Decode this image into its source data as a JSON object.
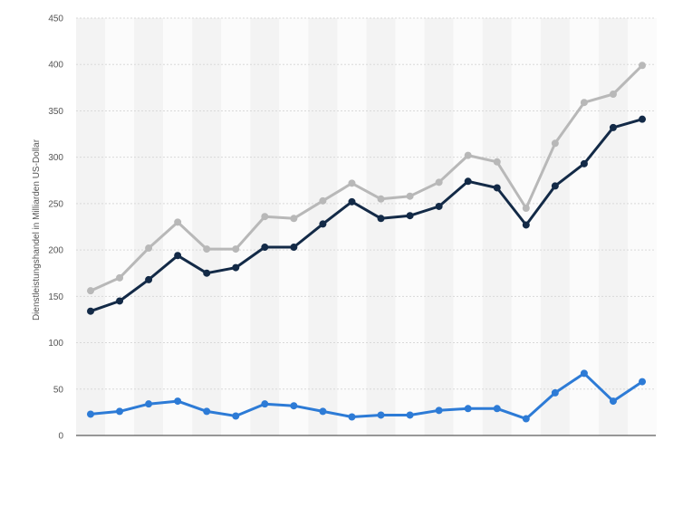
{
  "chart_data": {
    "type": "line",
    "title": "",
    "xlabel": "",
    "ylabel": "Dienstleistungshandel in Milliarden US-Dollar",
    "ylim": [
      0,
      450
    ],
    "yticks": [
      "0",
      "50",
      "100",
      "150",
      "200",
      "250",
      "300",
      "350",
      "400",
      "450"
    ],
    "grid": true,
    "legend": "none",
    "x": [
      1,
      2,
      3,
      4,
      5,
      6,
      7,
      8,
      9,
      10,
      11,
      12,
      13,
      14,
      15,
      16,
      17,
      18,
      19,
      20
    ],
    "series": [
      {
        "color": "#b8b8b8",
        "values": [
          156,
          170,
          202,
          230,
          201,
          201,
          236,
          234,
          253,
          272,
          255,
          258,
          273,
          302,
          295,
          245,
          315,
          359,
          368,
          399
        ]
      },
      {
        "color": "#132a47",
        "values": [
          134,
          145,
          168,
          194,
          175,
          181,
          203,
          203,
          228,
          252,
          234,
          237,
          247,
          274,
          267,
          227,
          269,
          293,
          332,
          341
        ]
      },
      {
        "color": "#2d7bd6",
        "values": [
          23,
          26,
          34,
          37,
          26,
          21,
          34,
          32,
          26,
          20,
          22,
          22,
          27,
          29,
          29,
          18,
          46,
          67,
          37,
          58
        ]
      }
    ]
  }
}
